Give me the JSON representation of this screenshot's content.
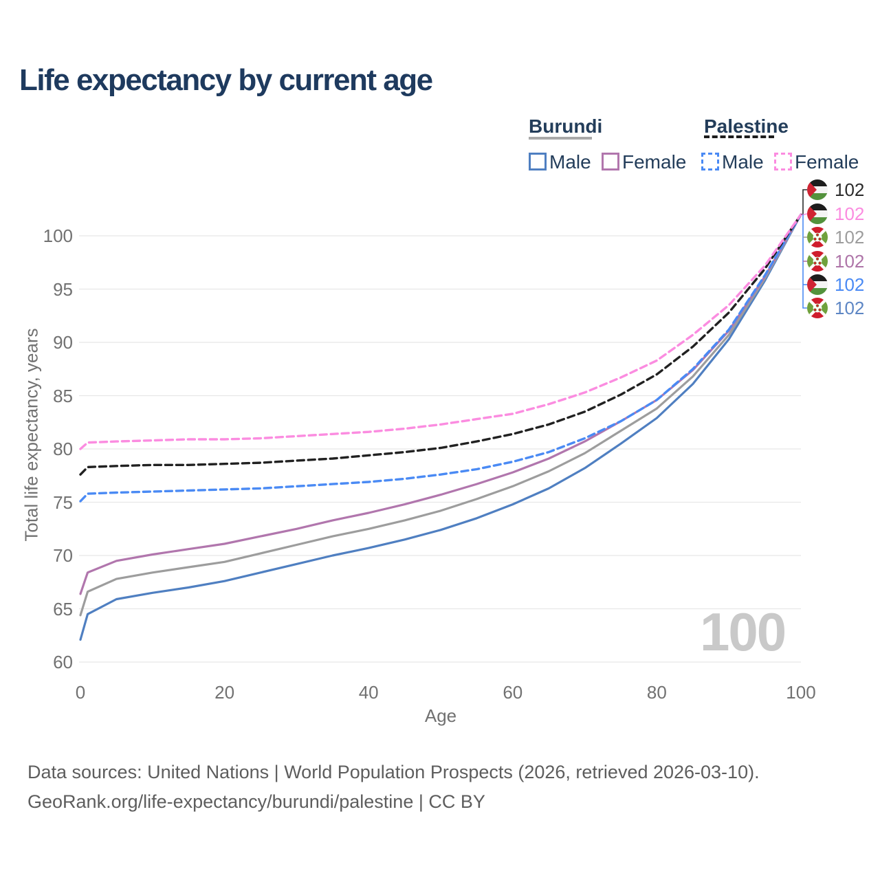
{
  "title": "Life expectancy by current age",
  "legend": {
    "groups": [
      {
        "country": "Burundi",
        "line_style": "solid",
        "underline_color": "#a9a9a9",
        "items": [
          {
            "label": "Male",
            "color": "#4f7fc1"
          },
          {
            "label": "Female",
            "color": "#b176ad"
          }
        ]
      },
      {
        "country": "Palestine",
        "line_style": "dashed",
        "underline_color": "#1d1d1d",
        "items": [
          {
            "label": "Male",
            "color": "#4a8af4"
          },
          {
            "label": "Female",
            "color": "#fb8ce0"
          }
        ]
      }
    ]
  },
  "chart_data": {
    "type": "line",
    "title": "Life expectancy by current age",
    "xlabel": "Age",
    "ylabel": "Total life expectancy, years",
    "xlim": [
      0,
      100
    ],
    "ylim": [
      60,
      102
    ],
    "x_ticks": [
      0,
      20,
      40,
      60,
      80,
      100
    ],
    "y_ticks": [
      60,
      65,
      70,
      75,
      80,
      85,
      90,
      95,
      100
    ],
    "grid": "horizontal",
    "ages": [
      0,
      1,
      5,
      10,
      15,
      20,
      25,
      30,
      35,
      40,
      45,
      50,
      55,
      60,
      65,
      70,
      75,
      80,
      85,
      90,
      95,
      100
    ],
    "series": [
      {
        "name": "Burundi Male",
        "country": "Burundi",
        "sex": "Male",
        "color": "#4f7fc1",
        "dashed": false,
        "values": [
          62.1,
          64.5,
          65.9,
          66.5,
          67.0,
          67.6,
          68.4,
          69.2,
          70.0,
          70.7,
          71.5,
          72.4,
          73.5,
          74.8,
          76.3,
          78.2,
          80.5,
          82.9,
          86.1,
          90.3,
          95.8,
          102
        ]
      },
      {
        "name": "Burundi Both sexes",
        "country": "Burundi",
        "sex": "Both",
        "color": "#9d9d9d",
        "dashed": false,
        "values": [
          64.4,
          66.6,
          67.8,
          68.4,
          68.9,
          69.4,
          70.2,
          71.0,
          71.8,
          72.5,
          73.3,
          74.2,
          75.3,
          76.5,
          77.9,
          79.6,
          81.7,
          83.8,
          86.8,
          90.7,
          96.0,
          102
        ]
      },
      {
        "name": "Burundi Female",
        "country": "Burundi",
        "sex": "Female",
        "color": "#b176ad",
        "dashed": false,
        "values": [
          66.4,
          68.4,
          69.5,
          70.1,
          70.6,
          71.1,
          71.8,
          72.5,
          73.3,
          74.0,
          74.8,
          75.7,
          76.7,
          77.8,
          79.1,
          80.7,
          82.6,
          84.6,
          87.4,
          91.1,
          96.2,
          102
        ]
      },
      {
        "name": "Palestine Male",
        "country": "Palestine",
        "sex": "Male",
        "color": "#4a8af4",
        "dashed": true,
        "values": [
          75.1,
          75.8,
          75.9,
          76.0,
          76.1,
          76.2,
          76.3,
          76.5,
          76.7,
          76.9,
          77.2,
          77.6,
          78.1,
          78.8,
          79.7,
          81.0,
          82.6,
          84.6,
          87.5,
          91.2,
          96.3,
          102
        ]
      },
      {
        "name": "Palestine Both sexes",
        "country": "Palestine",
        "sex": "Both",
        "color": "#212121",
        "dashed": true,
        "values": [
          77.6,
          78.3,
          78.4,
          78.5,
          78.5,
          78.6,
          78.7,
          78.9,
          79.1,
          79.4,
          79.7,
          80.1,
          80.7,
          81.4,
          82.3,
          83.5,
          85.1,
          87.0,
          89.6,
          92.8,
          96.9,
          102
        ]
      },
      {
        "name": "Palestine Female",
        "country": "Palestine",
        "sex": "Female",
        "color": "#fb8ce0",
        "dashed": true,
        "values": [
          80.0,
          80.6,
          80.7,
          80.8,
          80.9,
          80.9,
          81.0,
          81.2,
          81.4,
          81.6,
          81.9,
          82.3,
          82.8,
          83.3,
          84.2,
          85.3,
          86.7,
          88.3,
          90.7,
          93.5,
          97.2,
          102
        ]
      }
    ],
    "end_labels": [
      {
        "value": "102",
        "flag": "palestine",
        "series": "Palestine Both sexes",
        "color": "#2b2b2b"
      },
      {
        "value": "102",
        "flag": "palestine",
        "series": "Palestine Female",
        "color": "#fb8ce0"
      },
      {
        "value": "102",
        "flag": "burundi",
        "series": "Burundi Both sexes",
        "color": "#9d9d9d"
      },
      {
        "value": "102",
        "flag": "burundi",
        "series": "Burundi Female",
        "color": "#ae74a8"
      },
      {
        "value": "102",
        "flag": "palestine",
        "series": "Palestine Male",
        "color": "#4a8af4"
      },
      {
        "value": "102",
        "flag": "burundi",
        "series": "Burundi Male",
        "color": "#5d86c4"
      }
    ]
  },
  "watermark": "100",
  "footer": {
    "line1": "Data sources: United Nations | World Population Prospects (2026, retrieved 2026-03-10).",
    "line2": "GeoRank.org/life-expectancy/burundi/palestine | CC BY"
  },
  "colors": {
    "grid": "#e7e7e7",
    "tick_text": "#717171",
    "title_text": "#1e3a5e",
    "footer_text": "#5d5d5d",
    "watermark_text": "#c9c9c9"
  }
}
